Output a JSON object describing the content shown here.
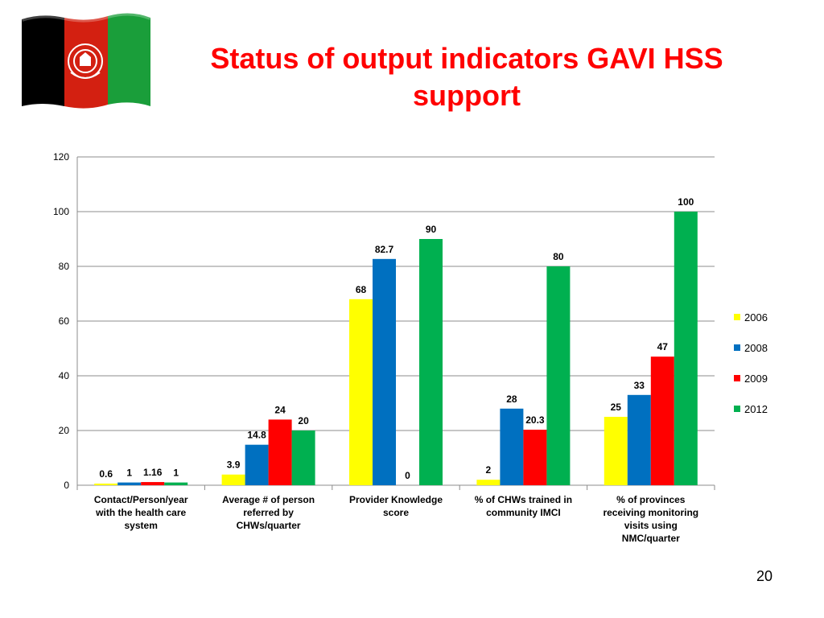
{
  "slide": {
    "title_lines": [
      "Status of output indicators GAVI HSS",
      "support"
    ],
    "page_number": "20"
  },
  "flag": {
    "colors": [
      "#000000",
      "#d32011",
      "#1a9e3a"
    ],
    "emblem": "afghanistan-emblem-icon"
  },
  "chart_data": {
    "type": "bar",
    "title": "",
    "categories": [
      [
        "Contact/Person/year",
        "with the health care",
        "system"
      ],
      [
        "Average # of person",
        "referred by",
        "CHWs/quarter"
      ],
      [
        "Provider Knowledge",
        "score"
      ],
      [
        "% of CHWs trained in",
        "community IMCI"
      ],
      [
        "% of provinces",
        "receiving monitoring",
        "visits using",
        "NMC/quarter"
      ]
    ],
    "series": [
      {
        "name": "2006",
        "color": "#ffff00",
        "values": [
          0.6,
          3.9,
          68,
          2,
          25
        ],
        "labels": [
          "0.6",
          "3.9",
          "68",
          "2",
          "25"
        ]
      },
      {
        "name": "2008",
        "color": "#0070c0",
        "values": [
          1,
          14.8,
          82.7,
          28,
          33
        ],
        "labels": [
          "1",
          "14.8",
          "82.7",
          "28",
          "33"
        ]
      },
      {
        "name": "2009",
        "color": "#ff0000",
        "values": [
          1.16,
          24,
          0,
          20.3,
          47
        ],
        "labels": [
          "1.16",
          "24",
          "0",
          "20.3",
          "47"
        ]
      },
      {
        "name": "2012",
        "color": "#00b050",
        "values": [
          1,
          20,
          90,
          80,
          100
        ],
        "labels": [
          "1",
          "20",
          "90",
          "80",
          "100"
        ]
      }
    ],
    "yticks": [
      "0",
      "20",
      "40",
      "60",
      "80",
      "100",
      "120"
    ],
    "ylim": [
      0,
      120
    ],
    "grid": true,
    "legend": "right"
  }
}
